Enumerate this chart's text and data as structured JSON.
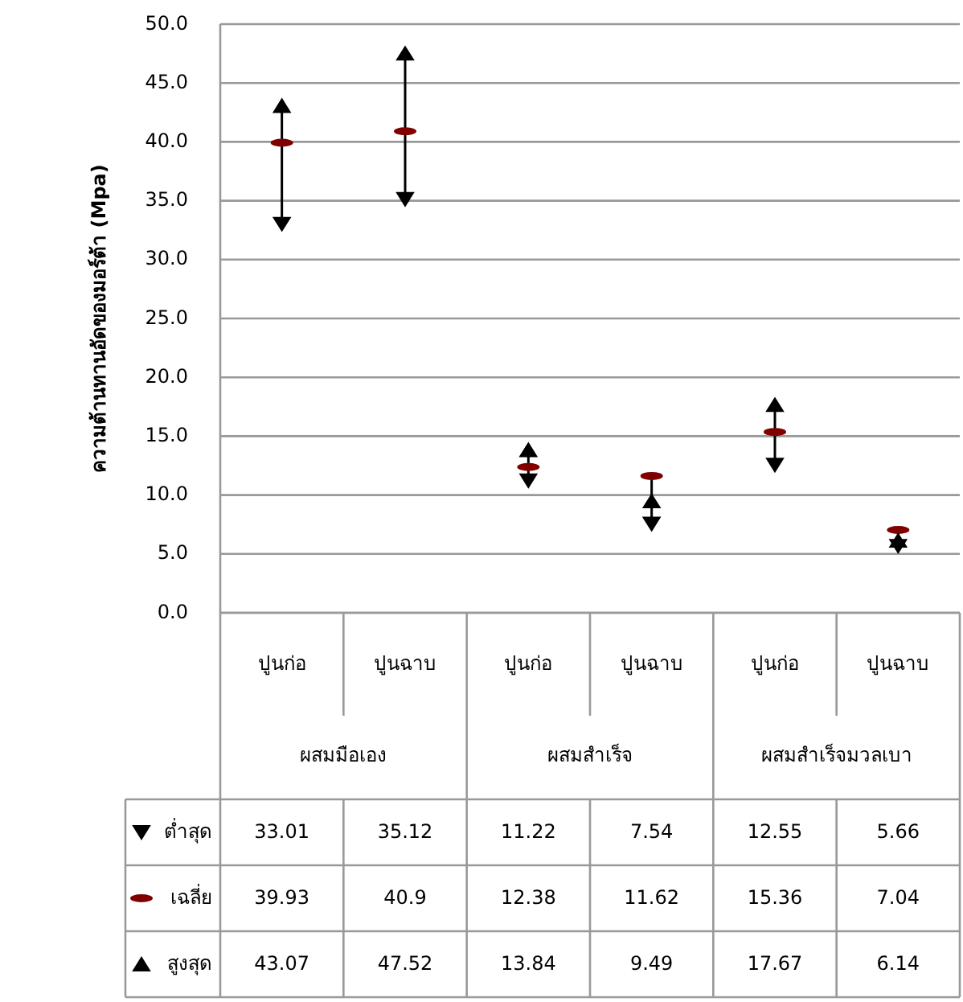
{
  "chart_data": {
    "type": "scatter",
    "ylabel": "ความต้านทานอัดของมอร์ต้า (Mpa)",
    "categories": [
      "ปูนก่อ",
      "ปูนฉาบ",
      "ปูนก่อ",
      "ปูนฉาบ",
      "ปูนก่อ",
      "ปูนฉาบ"
    ],
    "annotations": [
      "ผสมมือเอง",
      "ผสมสำเร็จ",
      "ผสมสำเร็จมวลเบา"
    ],
    "series": [
      {
        "name": "ต่ำสุด",
        "color": "#000000",
        "values": [
          33.01,
          35.12,
          11.22,
          7.54,
          12.55,
          5.66
        ]
      },
      {
        "name": "เฉลี่ย",
        "color": "#800000",
        "values": [
          39.93,
          40.9,
          12.38,
          11.62,
          15.36,
          7.04
        ]
      },
      {
        "name": "สูงสุด",
        "color": "#000000",
        "values": [
          43.07,
          47.52,
          13.84,
          9.49,
          17.67,
          6.14
        ]
      }
    ],
    "ylim": [
      0,
      50
    ],
    "yticks": [
      {
        "value": 0,
        "label": "0.0"
      },
      {
        "value": 5,
        "label": "5.0"
      },
      {
        "value": 10,
        "label": "10.0"
      },
      {
        "value": 15,
        "label": "15.0"
      },
      {
        "value": 20,
        "label": "20.0"
      },
      {
        "value": 25,
        "label": "25.0"
      },
      {
        "value": 30,
        "label": "30.0"
      },
      {
        "value": 35,
        "label": "35.0"
      },
      {
        "value": 40,
        "label": "40.0"
      },
      {
        "value": 45,
        "label": "45.0"
      },
      {
        "value": 50,
        "label": "50.0"
      }
    ],
    "grid": "y",
    "data_labels": true,
    "legend": "bottom left"
  }
}
